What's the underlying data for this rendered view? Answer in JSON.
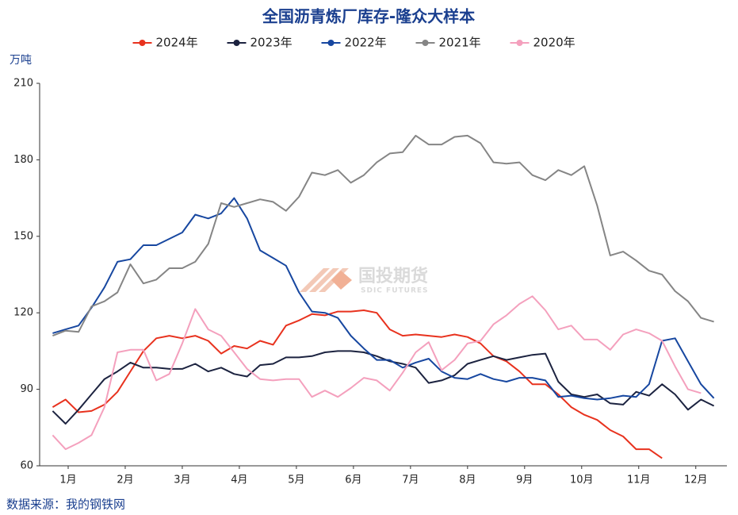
{
  "chart_data": {
    "type": "line",
    "title": "全国沥青炼厂库存-隆众大样本",
    "y_axis_label": "万吨",
    "source": "数据来源：我的钢铁网",
    "watermark": "国投期货",
    "watermark_sub": "SDIC FUTURES",
    "xlim": [
      0,
      53
    ],
    "xticks": [
      {
        "value": 2.2,
        "label": "1月"
      },
      {
        "value": 6.6,
        "label": "2月"
      },
      {
        "value": 11.0,
        "label": "3月"
      },
      {
        "value": 15.4,
        "label": "4月"
      },
      {
        "value": 19.8,
        "label": "5月"
      },
      {
        "value": 24.2,
        "label": "6月"
      },
      {
        "value": 28.6,
        "label": "7月"
      },
      {
        "value": 33.0,
        "label": "8月"
      },
      {
        "value": 37.4,
        "label": "9月"
      },
      {
        "value": 41.8,
        "label": "10月"
      },
      {
        "value": 46.2,
        "label": "11月"
      },
      {
        "value": 50.6,
        "label": "12月"
      }
    ],
    "ylim": [
      60,
      210
    ],
    "yticks": [
      60,
      90,
      120,
      150,
      180,
      210
    ],
    "grid": false,
    "legend": "top",
    "series": [
      {
        "name": "2024年",
        "color": "#e8321e",
        "values": [
          83,
          86,
          81,
          81.5,
          84,
          89,
          97,
          105,
          110,
          111,
          110,
          111,
          109,
          104,
          107,
          106,
          109,
          107.5,
          115,
          117,
          119.5,
          119,
          120.5,
          120.5,
          121,
          120,
          113.5,
          111,
          111.5,
          111,
          110.5,
          111.5,
          110.5,
          108,
          103,
          101,
          97,
          92,
          92,
          88,
          83,
          80,
          78,
          74,
          71.5,
          66.5,
          66.5,
          63
        ]
      },
      {
        "name": "2023年",
        "color": "#1c2340",
        "values": [
          81.5,
          76.5,
          82,
          88,
          94,
          97,
          100.5,
          98.5,
          98.5,
          98,
          98,
          100,
          97,
          98.5,
          96,
          95,
          99.5,
          100,
          102.5,
          102.5,
          103,
          104.5,
          105,
          105,
          104.5,
          103,
          101,
          100,
          98.5,
          92.5,
          93.5,
          95.5,
          100,
          101.5,
          103,
          101.5,
          102.5,
          103.5,
          104,
          93,
          88,
          87,
          88,
          84.5,
          84,
          89,
          87.5,
          92,
          88,
          82,
          86,
          83.5
        ]
      },
      {
        "name": "2022年",
        "color": "#1747a0",
        "values": [
          112,
          113.5,
          115,
          122,
          130,
          140,
          141,
          146.5,
          146.5,
          149,
          151.5,
          158.5,
          157,
          159,
          165,
          157,
          144.5,
          141.5,
          138.5,
          128,
          120.5,
          120,
          118,
          111,
          106,
          101.5,
          101.5,
          98.5,
          100.5,
          102,
          97,
          94.5,
          94,
          96,
          94,
          93,
          94.5,
          94.5,
          93.5,
          87,
          87.5,
          86.5,
          86,
          86.5,
          87.5,
          87,
          92,
          109,
          110,
          101,
          92,
          86.5
        ]
      },
      {
        "name": "2021年",
        "color": "#858585",
        "values": [
          111,
          113,
          112.5,
          122.5,
          124.5,
          128,
          139,
          131.5,
          133,
          137.5,
          137.5,
          140,
          147,
          163,
          161.5,
          163,
          164.5,
          163.5,
          160,
          165.5,
          175,
          174,
          176,
          171,
          174,
          179,
          182.5,
          183,
          189.5,
          186,
          186,
          189,
          189.5,
          186.5,
          179,
          178.5,
          179,
          174,
          172,
          176,
          174,
          177.5,
          162,
          142.5,
          144,
          140.5,
          136.5,
          135,
          128.5,
          124.5,
          118,
          116.5
        ]
      },
      {
        "name": "2020年",
        "color": "#f4a0bd",
        "values": [
          72,
          66.5,
          69,
          72,
          83,
          104.5,
          105.5,
          105.5,
          93.5,
          96,
          108,
          121.5,
          113.5,
          111,
          104.5,
          98,
          94,
          93.5,
          94,
          94,
          87,
          89.5,
          87,
          90.5,
          94.5,
          93.5,
          89.5,
          96.5,
          104.5,
          108.5,
          97.5,
          101.5,
          108,
          109,
          115.5,
          119,
          123.5,
          126.5,
          121,
          113.5,
          115,
          109.5,
          109.5,
          105.5,
          111.5,
          113.5,
          112,
          109,
          99,
          90,
          88.5
        ]
      }
    ]
  }
}
